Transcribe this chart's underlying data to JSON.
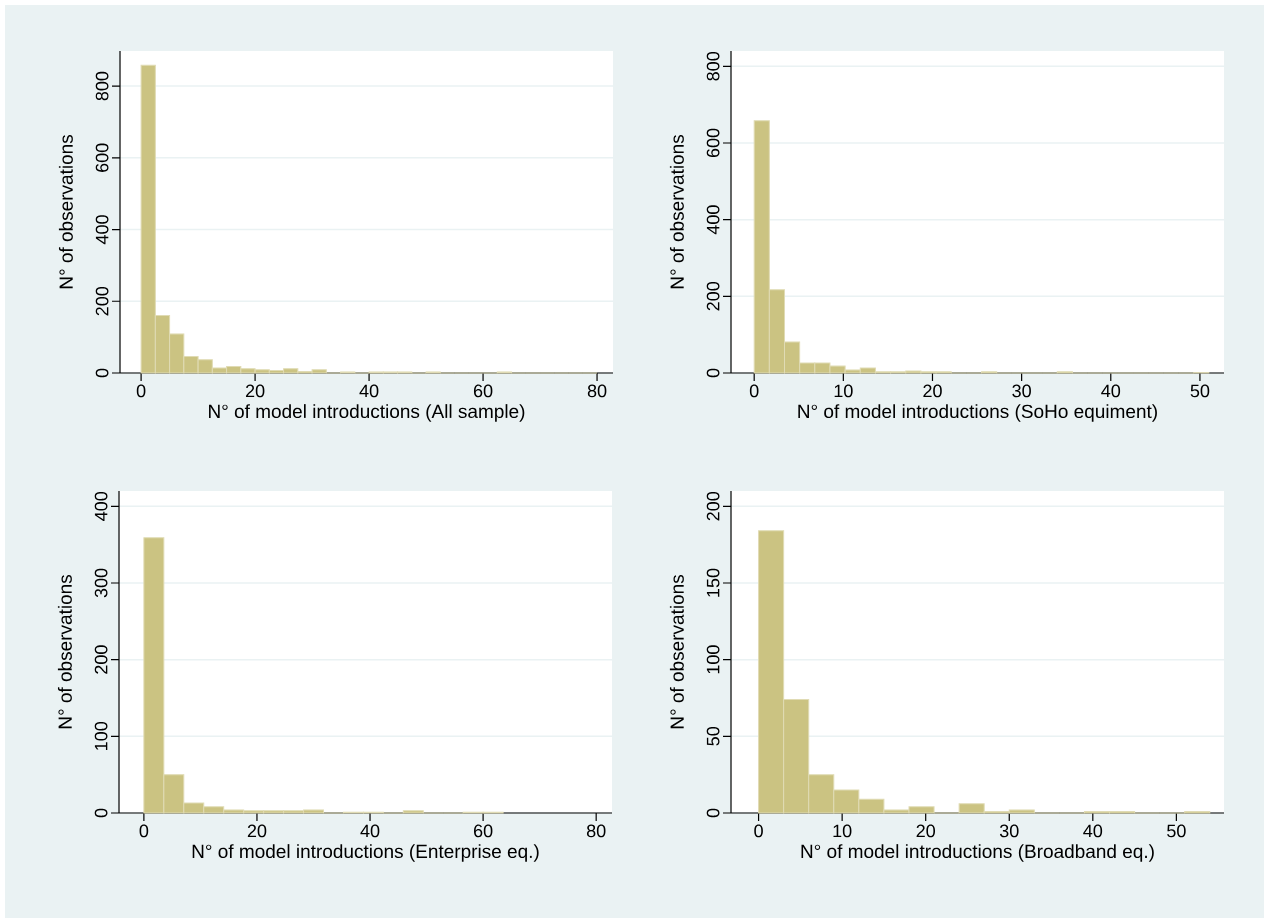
{
  "chart_data": [
    {
      "type": "histogram",
      "xlabel": "N° of model introductions (All sample)",
      "ylabel": "N° of observations",
      "color": "#cbc382",
      "grid": "y",
      "bins": [
        0,
        2.5,
        5,
        7.5,
        10,
        12.5,
        15,
        17.5,
        20,
        22.5,
        25,
        27.5,
        30,
        32.5,
        35,
        37.5,
        40,
        42.5,
        45,
        47.5,
        50,
        52.5,
        55,
        57.5,
        60,
        62.5,
        65,
        67.5,
        70,
        72.5,
        75,
        77.5,
        80
      ],
      "values": [
        858,
        160,
        109,
        46,
        37,
        14,
        18,
        12,
        9,
        7,
        12,
        4,
        9,
        0,
        3,
        0,
        3,
        3,
        3,
        0,
        3,
        0,
        0,
        0,
        0,
        3,
        0,
        0,
        0,
        0,
        0,
        0
      ],
      "xlim": [
        -3.7,
        82.8
      ],
      "ylim": [
        0,
        898
      ],
      "xticks": [
        0,
        20,
        40,
        60,
        80
      ],
      "yticks": [
        0,
        200,
        400,
        600,
        800
      ]
    },
    {
      "type": "histogram",
      "xlabel": "N° of model introductions (SoHo equiment)",
      "ylabel": "N° of observations",
      "color": "#cbc382",
      "grid": "y",
      "bins": [
        0,
        1.7,
        3.4,
        5.1,
        6.8,
        8.5,
        10.2,
        11.9,
        13.6,
        15.3,
        17,
        18.7,
        20.4,
        22.1,
        23.8,
        25.5,
        27.2,
        28.9,
        30.6,
        32.3,
        34,
        35.7,
        37.4,
        39.1,
        40.8,
        42.5,
        44.2,
        45.9,
        47.6,
        49.3,
        51
      ],
      "values": [
        658,
        217,
        81,
        26,
        26,
        18,
        8,
        13,
        3,
        3,
        5,
        3,
        3,
        0,
        0,
        3,
        0,
        0,
        0,
        0,
        3,
        0,
        0,
        0,
        0,
        0,
        0,
        0,
        0,
        1
      ],
      "xlim": [
        -2.6,
        52.7
      ],
      "ylim": [
        0,
        840
      ],
      "xticks": [
        0,
        10,
        20,
        30,
        40,
        50
      ],
      "yticks": [
        0,
        200,
        400,
        600,
        800
      ]
    },
    {
      "type": "histogram",
      "xlabel": "N° of model introductions (Enterprise eq.)",
      "ylabel": "N° of observations",
      "color": "#cbc382",
      "grid": "y",
      "bins": [
        0,
        3.53,
        7.06,
        10.59,
        14.12,
        17.65,
        21.18,
        24.71,
        28.24,
        31.77,
        35.3,
        38.83,
        42.36,
        45.89,
        49.42,
        52.95,
        56.48,
        60.01,
        63.54
      ],
      "values": [
        359,
        50,
        13,
        8,
        4,
        3,
        3,
        3,
        4,
        0,
        1,
        1,
        0,
        3,
        0,
        0,
        1,
        1
      ],
      "xlim": [
        -4.4,
        82.8
      ],
      "ylim": [
        0,
        420
      ],
      "xticks": [
        0,
        20,
        40,
        60,
        80
      ],
      "yticks": [
        0,
        100,
        200,
        300,
        400
      ]
    },
    {
      "type": "histogram",
      "xlabel": "N° of model introductions (Broadband eq.)",
      "ylabel": "N° of observations",
      "color": "#cbc382",
      "grid": "y",
      "bins": [
        0,
        3,
        6,
        9,
        12,
        15,
        18,
        21,
        24,
        27,
        30,
        33,
        36,
        39,
        42,
        45,
        48,
        51,
        54
      ],
      "values": [
        184,
        74,
        25,
        15,
        9,
        2,
        4,
        0,
        6,
        1,
        2,
        0,
        0,
        1,
        1,
        0,
        0,
        1
      ],
      "xlim": [
        -3.3,
        55.7
      ],
      "ylim": [
        0,
        210
      ],
      "xticks": [
        0,
        10,
        20,
        30,
        40,
        50
      ],
      "yticks": [
        0,
        50,
        100,
        150,
        200
      ]
    }
  ]
}
